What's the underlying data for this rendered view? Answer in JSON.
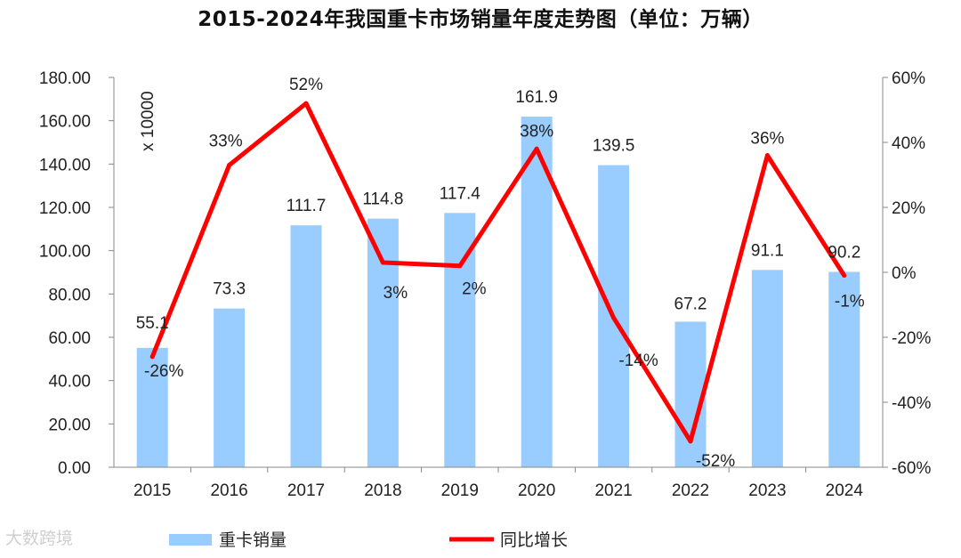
{
  "title": "2015-2024年我国重卡市场销量年度走势图（单位：万辆）",
  "watermark": "大数跨境",
  "chart_data": {
    "type": "bar",
    "categories": [
      "2015",
      "2016",
      "2017",
      "2018",
      "2019",
      "2020",
      "2021",
      "2022",
      "2023",
      "2024"
    ],
    "series": [
      {
        "name": "重卡销量",
        "kind": "bar",
        "axis": "left",
        "color": "#99ccff",
        "values": [
          55.1,
          73.3,
          111.7,
          114.8,
          117.4,
          161.9,
          139.5,
          67.2,
          91.1,
          90.2
        ],
        "labels": [
          "55.1",
          "73.3",
          "111.7",
          "114.8",
          "117.4",
          "161.9",
          "139.5",
          "67.2",
          "91.1",
          "90.2"
        ]
      },
      {
        "name": "同比增长",
        "kind": "line",
        "axis": "right",
        "color": "#ff0000",
        "values": [
          -26,
          33,
          52,
          3,
          2,
          38,
          -14,
          -52,
          36,
          -1
        ],
        "labels": [
          "-26%",
          "33%",
          "52%",
          "3%",
          "2%",
          "38%",
          "-14%",
          "-52%",
          "36%",
          "-1%"
        ]
      }
    ],
    "left_axis": {
      "ylim": [
        0,
        180
      ],
      "ticks": [
        "0.00",
        "20.00",
        "40.00",
        "60.00",
        "80.00",
        "100.00",
        "120.00",
        "140.00",
        "160.00",
        "180.00"
      ],
      "multiplier_label": "x 10000"
    },
    "right_axis": {
      "ylim": [
        -60,
        60
      ],
      "ticks": [
        "-60%",
        "-40%",
        "-20%",
        "0%",
        "20%",
        "40%",
        "60%"
      ]
    },
    "grid": false,
    "legend_position": "bottom"
  }
}
